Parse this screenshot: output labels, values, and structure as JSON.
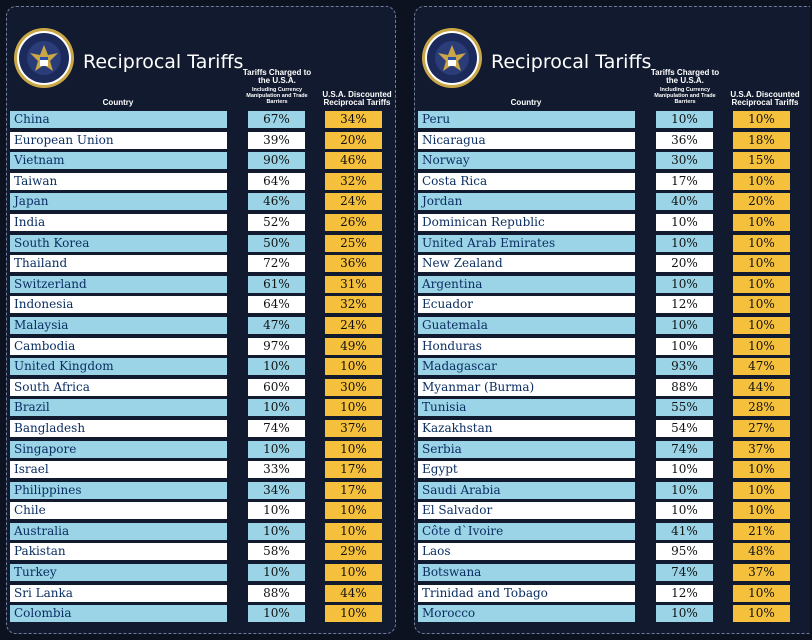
{
  "colors": {
    "background": "#0d1220",
    "panel": "#111a2e",
    "row_blue": "#9ad4e6",
    "row_white": "#ffffff",
    "discount_yellow": "#f5c13d",
    "text_navy": "#0c2e62"
  },
  "seal_icon": "presidential-seal-icon",
  "left": {
    "title": "Reciprocal Tariffs",
    "headers": {
      "country": "Country",
      "charged": "Tariffs Charged to the U.S.A.",
      "charged_sub": "Including Currency Manipulation and Trade Barriers",
      "discounted": "U.S.A. Discounted Reciprocal Tariffs"
    },
    "rows": [
      {
        "country": "China",
        "charged": "67%",
        "discounted": "34%"
      },
      {
        "country": "European Union",
        "charged": "39%",
        "discounted": "20%"
      },
      {
        "country": "Vietnam",
        "charged": "90%",
        "discounted": "46%"
      },
      {
        "country": "Taiwan",
        "charged": "64%",
        "discounted": "32%"
      },
      {
        "country": "Japan",
        "charged": "46%",
        "discounted": "24%"
      },
      {
        "country": "India",
        "charged": "52%",
        "discounted": "26%"
      },
      {
        "country": "South Korea",
        "charged": "50%",
        "discounted": "25%"
      },
      {
        "country": "Thailand",
        "charged": "72%",
        "discounted": "36%"
      },
      {
        "country": "Switzerland",
        "charged": "61%",
        "discounted": "31%"
      },
      {
        "country": "Indonesia",
        "charged": "64%",
        "discounted": "32%"
      },
      {
        "country": "Malaysia",
        "charged": "47%",
        "discounted": "24%"
      },
      {
        "country": "Cambodia",
        "charged": "97%",
        "discounted": "49%"
      },
      {
        "country": "United Kingdom",
        "charged": "10%",
        "discounted": "10%"
      },
      {
        "country": "South Africa",
        "charged": "60%",
        "discounted": "30%"
      },
      {
        "country": "Brazil",
        "charged": "10%",
        "discounted": "10%"
      },
      {
        "country": "Bangladesh",
        "charged": "74%",
        "discounted": "37%"
      },
      {
        "country": "Singapore",
        "charged": "10%",
        "discounted": "10%"
      },
      {
        "country": "Israel",
        "charged": "33%",
        "discounted": "17%"
      },
      {
        "country": "Philippines",
        "charged": "34%",
        "discounted": "17%"
      },
      {
        "country": "Chile",
        "charged": "10%",
        "discounted": "10%"
      },
      {
        "country": "Australia",
        "charged": "10%",
        "discounted": "10%"
      },
      {
        "country": "Pakistan",
        "charged": "58%",
        "discounted": "29%"
      },
      {
        "country": "Turkey",
        "charged": "10%",
        "discounted": "10%"
      },
      {
        "country": "Sri Lanka",
        "charged": "88%",
        "discounted": "44%"
      },
      {
        "country": "Colombia",
        "charged": "10%",
        "discounted": "10%"
      }
    ]
  },
  "right": {
    "title": "Reciprocal Tariffs",
    "headers": {
      "country": "Country",
      "charged": "Tariffs Charged to the U.S.A.",
      "charged_sub": "Including Currency Manipulation and Trade Barriers",
      "discounted": "U.S.A. Discounted Reciprocal Tariffs"
    },
    "rows": [
      {
        "country": "Peru",
        "charged": "10%",
        "discounted": "10%"
      },
      {
        "country": "Nicaragua",
        "charged": "36%",
        "discounted": "18%"
      },
      {
        "country": "Norway",
        "charged": "30%",
        "discounted": "15%"
      },
      {
        "country": "Costa Rica",
        "charged": "17%",
        "discounted": "10%"
      },
      {
        "country": "Jordan",
        "charged": "40%",
        "discounted": "20%"
      },
      {
        "country": "Dominican Republic",
        "charged": "10%",
        "discounted": "10%"
      },
      {
        "country": "United Arab Emirates",
        "charged": "10%",
        "discounted": "10%"
      },
      {
        "country": "New Zealand",
        "charged": "20%",
        "discounted": "10%"
      },
      {
        "country": "Argentina",
        "charged": "10%",
        "discounted": "10%"
      },
      {
        "country": "Ecuador",
        "charged": "12%",
        "discounted": "10%"
      },
      {
        "country": "Guatemala",
        "charged": "10%",
        "discounted": "10%"
      },
      {
        "country": "Honduras",
        "charged": "10%",
        "discounted": "10%"
      },
      {
        "country": "Madagascar",
        "charged": "93%",
        "discounted": "47%"
      },
      {
        "country": "Myanmar (Burma)",
        "charged": "88%",
        "discounted": "44%"
      },
      {
        "country": "Tunisia",
        "charged": "55%",
        "discounted": "28%"
      },
      {
        "country": "Kazakhstan",
        "charged": "54%",
        "discounted": "27%"
      },
      {
        "country": "Serbia",
        "charged": "74%",
        "discounted": "37%"
      },
      {
        "country": "Egypt",
        "charged": "10%",
        "discounted": "10%"
      },
      {
        "country": "Saudi Arabia",
        "charged": "10%",
        "discounted": "10%"
      },
      {
        "country": "El Salvador",
        "charged": "10%",
        "discounted": "10%"
      },
      {
        "country": "Côte d`Ivoire",
        "charged": "41%",
        "discounted": "21%"
      },
      {
        "country": "Laos",
        "charged": "95%",
        "discounted": "48%"
      },
      {
        "country": "Botswana",
        "charged": "74%",
        "discounted": "37%"
      },
      {
        "country": "Trinidad and Tobago",
        "charged": "12%",
        "discounted": "10%"
      },
      {
        "country": "Morocco",
        "charged": "10%",
        "discounted": "10%"
      }
    ]
  }
}
